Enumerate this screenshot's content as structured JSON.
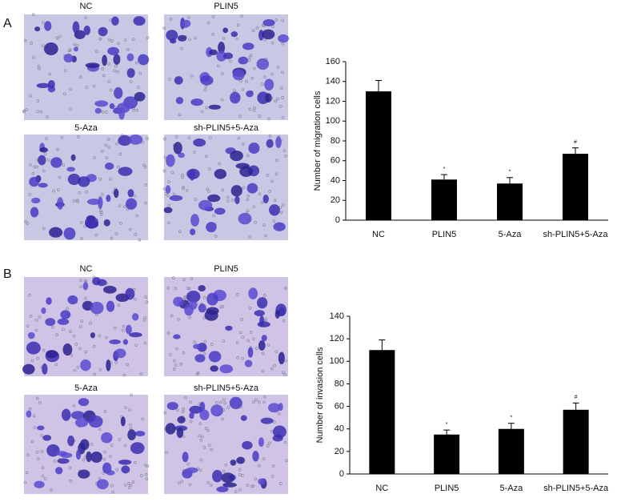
{
  "panels": [
    {
      "label": "A",
      "images": [
        "NC",
        "PLIN5",
        "5-Aza",
        "sh-PLIN5+5-Aza"
      ]
    },
    {
      "label": "B",
      "images": [
        "NC",
        "PLIN5",
        "5-Aza",
        "sh-PLIN5+5-Aza"
      ]
    }
  ],
  "chart_data": [
    {
      "type": "bar",
      "ylabel": "Number of migration cells",
      "categories": [
        "NC",
        "PLIN5",
        "5-Aza",
        "sh-PLIN5+5-Aza"
      ],
      "values": [
        130,
        41,
        37,
        67
      ],
      "errors": [
        11,
        5,
        6,
        6
      ],
      "annotations": [
        null,
        "*",
        "*",
        "#"
      ],
      "color": "#000000",
      "ylim": [
        0,
        160
      ],
      "yticks": [
        0,
        20,
        40,
        60,
        80,
        100,
        120,
        140,
        160
      ]
    },
    {
      "type": "bar",
      "ylabel": "Number of invasion cells",
      "categories": [
        "NC",
        "PLIN5",
        "5-Aza",
        "sh-PLIN5+5-Aza"
      ],
      "values": [
        110,
        35,
        40,
        57
      ],
      "errors": [
        9,
        4,
        5,
        6
      ],
      "annotations": [
        null,
        "*",
        "*",
        "#"
      ],
      "color": "#000000",
      "ylim": [
        0,
        140
      ],
      "yticks": [
        0,
        20,
        40,
        60,
        80,
        100,
        120,
        140
      ]
    }
  ]
}
